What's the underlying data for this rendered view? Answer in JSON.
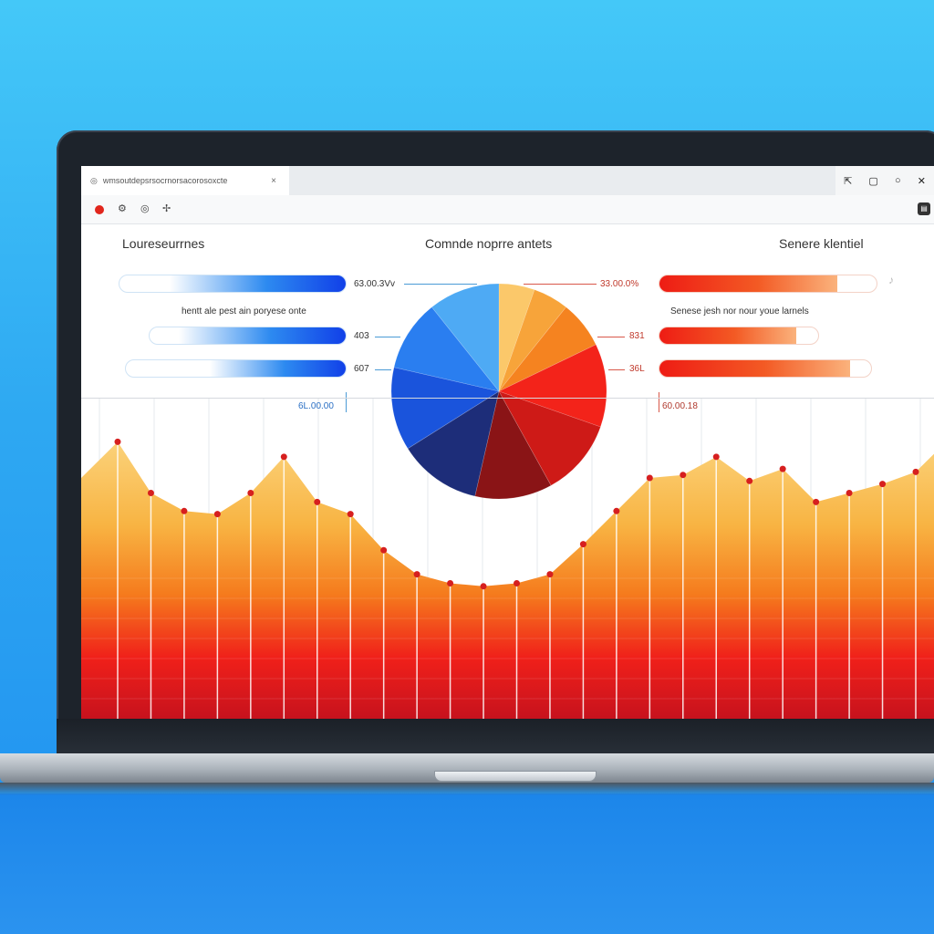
{
  "browser": {
    "tab_title": "wmsoutdepsrsocrnorsacorosoxcte",
    "tab_close": "×",
    "window_controls": [
      "⇱",
      "▢",
      "○",
      "✕"
    ]
  },
  "dashboard": {
    "left_title": "Loureseurrnes",
    "center_title": "Comnde noprre antets",
    "right_title": "Senere klentiel",
    "left_panel": {
      "caption": "hentt ale pest ain poryese onte",
      "bars": [
        {
          "label": "63.00.3Vv",
          "fill": 0.78
        },
        {
          "label": "403",
          "fill": 0.85
        },
        {
          "label": "607",
          "fill": 0.62
        }
      ],
      "footer_value": "6L.00.00"
    },
    "right_panel": {
      "caption": "Senese jesh nor nour youe larnels",
      "bars": [
        {
          "label": "33.00.0%",
          "fill": 0.82
        },
        {
          "label": "831",
          "fill": 0.86
        },
        {
          "label": "36L",
          "fill": 0.9
        }
      ],
      "footer_value": "60.00.18"
    }
  },
  "pie": {
    "slices": [
      {
        "value": 6,
        "color": "#fbc86a"
      },
      {
        "value": 6,
        "color": "#f7a43a"
      },
      {
        "value": 8,
        "color": "#f58320"
      },
      {
        "value": 14,
        "color": "#f3231a"
      },
      {
        "value": 13,
        "color": "#ce1a17"
      },
      {
        "value": 13,
        "color": "#8a1416"
      },
      {
        "value": 14,
        "color": "#1d2d79"
      },
      {
        "value": 14,
        "color": "#1a54dc"
      },
      {
        "value": 12,
        "color": "#2a7ef0"
      },
      {
        "value": 12,
        "color": "#4eaaf4"
      }
    ]
  },
  "area": {
    "values": [
      92,
      75,
      69,
      68,
      75,
      87,
      72,
      68,
      56,
      48,
      45,
      44,
      45,
      48,
      58,
      69,
      80,
      81,
      87,
      79,
      83,
      72,
      75,
      78,
      82
    ]
  }
}
